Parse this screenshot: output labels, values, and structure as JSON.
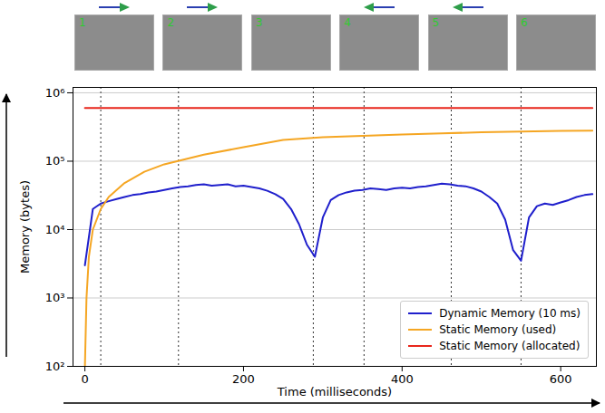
{
  "chart_data": {
    "type": "line",
    "x_label": "Time (milliseconds)",
    "y_label": "Memory (bytes)",
    "log": "y",
    "grid": "y",
    "legend": "lower right",
    "xlim": [
      -15,
      645
    ],
    "xticks": [
      0,
      200,
      400,
      600
    ],
    "ylim": [
      100,
      1200000
    ],
    "yticks": [
      {
        "value": 100,
        "label": "10²"
      },
      {
        "value": 1000,
        "label": "10³"
      },
      {
        "value": 10000,
        "label": "10⁴"
      },
      {
        "value": 100000,
        "label": "10⁵"
      },
      {
        "value": 1000000,
        "label": "10⁶"
      }
    ],
    "annotations": [
      {
        "x": 20,
        "label": "1",
        "arrow": "right"
      },
      {
        "x": 118,
        "label": "2",
        "arrow": "right"
      },
      {
        "x": 288,
        "label": "3"
      },
      {
        "x": 352,
        "label": "4",
        "arrow": "left"
      },
      {
        "x": 462,
        "label": "5",
        "arrow": "left"
      },
      {
        "x": 550,
        "label": "6"
      }
    ],
    "series": [
      {
        "name": "Dynamic Memory (10 ms)",
        "color": "#1f1fcc",
        "x": [
          0,
          10,
          20,
          30,
          40,
          50,
          60,
          70,
          80,
          90,
          100,
          110,
          120,
          130,
          140,
          150,
          160,
          170,
          180,
          190,
          200,
          210,
          220,
          230,
          240,
          250,
          260,
          270,
          280,
          290,
          300,
          310,
          320,
          330,
          340,
          350,
          360,
          370,
          380,
          390,
          400,
          410,
          420,
          430,
          440,
          450,
          460,
          470,
          480,
          490,
          500,
          510,
          520,
          530,
          540,
          550,
          560,
          570,
          580,
          590,
          600,
          610,
          620,
          630,
          640
        ],
        "values": [
          3000,
          20000,
          24000,
          26000,
          28000,
          30000,
          32000,
          33000,
          35000,
          36000,
          38000,
          40000,
          42000,
          43000,
          45000,
          46000,
          44000,
          45000,
          46000,
          43000,
          44000,
          42000,
          40000,
          37000,
          33000,
          28000,
          20000,
          12000,
          6000,
          4000,
          15000,
          27000,
          32000,
          35000,
          37000,
          38000,
          40000,
          39000,
          38000,
          40000,
          41000,
          40000,
          42000,
          43000,
          45000,
          47000,
          46000,
          44000,
          43000,
          40000,
          36000,
          30000,
          24000,
          14000,
          5000,
          3500,
          15000,
          22000,
          24000,
          23000,
          25000,
          27000,
          30000,
          32000,
          33000
        ]
      },
      {
        "name": "Static Memory (used)",
        "color": "#f5a623",
        "x": [
          0,
          2,
          5,
          10,
          20,
          30,
          50,
          75,
          100,
          150,
          200,
          250,
          300,
          350,
          400,
          450,
          500,
          550,
          600,
          640
        ],
        "values": [
          100,
          1000,
          4000,
          10000,
          20000,
          30000,
          48000,
          70000,
          90000,
          125000,
          160000,
          205000,
          225000,
          235000,
          245000,
          255000,
          265000,
          272000,
          278000,
          280000
        ]
      },
      {
        "name": "Static Memory (allocated)",
        "color": "#e8261c",
        "x": [
          0,
          640
        ],
        "values": [
          600000,
          600000
        ]
      }
    ]
  }
}
